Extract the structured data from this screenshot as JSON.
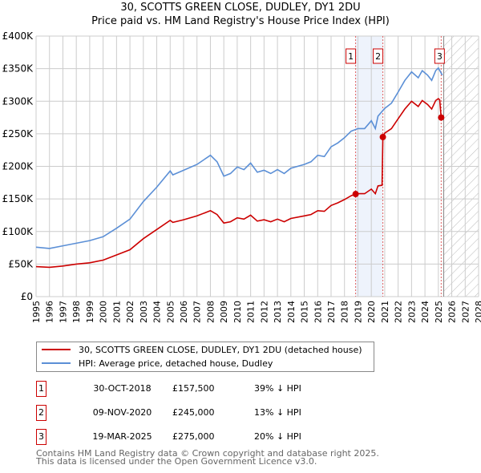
{
  "chart_data": {
    "type": "line",
    "title": "30, SCOTTS GREEN CLOSE, DUDLEY, DY1 2DU",
    "subtitle": "Price paid vs. HM Land Registry's House Price Index (HPI)",
    "xlim": [
      1995,
      2028
    ],
    "ylim": [
      0,
      400000
    ],
    "x_ticks": [
      "1995",
      "1996",
      "1997",
      "1998",
      "1999",
      "2000",
      "2001",
      "2002",
      "2003",
      "2004",
      "2005",
      "2006",
      "2007",
      "2008",
      "2009",
      "2010",
      "2011",
      "2012",
      "2013",
      "2014",
      "2015",
      "2016",
      "2017",
      "2018",
      "2019",
      "2020",
      "2021",
      "2022",
      "2023",
      "2024",
      "2025",
      "2026",
      "2027",
      "2028"
    ],
    "y_ticks": [
      {
        "v": 0,
        "label": "£0"
      },
      {
        "v": 50000,
        "label": "£50K"
      },
      {
        "v": 100000,
        "label": "£100K"
      },
      {
        "v": 150000,
        "label": "£150K"
      },
      {
        "v": 200000,
        "label": "£200K"
      },
      {
        "v": 250000,
        "label": "£250K"
      },
      {
        "v": 300000,
        "label": "£300K"
      },
      {
        "v": 350000,
        "label": "£350K"
      },
      {
        "v": 400000,
        "label": "£400K"
      }
    ],
    "grid": true,
    "shaded_span": [
      2018.83,
      2020.86
    ],
    "forecast_hatch_from": 2025.4,
    "series": [
      {
        "name": "30, SCOTTS GREEN CLOSE, DUDLEY, DY1 2DU (detached house)",
        "color": "#cc0000",
        "x": [
          1995,
          1996,
          1997,
          1998,
          1999,
          2000,
          2001,
          2002,
          2003,
          2004,
          2005,
          2005.2,
          2006,
          2007,
          2008,
          2008.5,
          2009,
          2009.5,
          2010,
          2010.5,
          2011,
          2011.5,
          2012,
          2012.5,
          2013,
          2013.5,
          2014,
          2015,
          2015.5,
          2016,
          2016.5,
          2017,
          2017.5,
          2018,
          2018.5,
          2018.83,
          2019,
          2019.5,
          2020,
          2020.3,
          2020.5,
          2020.8,
          2020.86,
          2021,
          2021.5,
          2022,
          2022.5,
          2023,
          2023.5,
          2023.8,
          2024.2,
          2024.5,
          2024.8,
          2025.0,
          2025.1,
          2025.21,
          2025.3
        ],
        "y": [
          46000,
          45000,
          47000,
          50000,
          52000,
          56000,
          64000,
          72000,
          89000,
          103000,
          117000,
          114000,
          118000,
          124000,
          132000,
          126000,
          113000,
          115000,
          121000,
          119000,
          125000,
          116000,
          118000,
          115000,
          119000,
          115000,
          120000,
          124000,
          126000,
          132000,
          131000,
          140000,
          144000,
          149000,
          155000,
          157500,
          158000,
          158000,
          165000,
          158000,
          170000,
          171000,
          245000,
          251000,
          258000,
          273000,
          288000,
          300000,
          292000,
          301000,
          295000,
          288000,
          301000,
          304000,
          302000,
          275000,
          271000
        ]
      },
      {
        "name": "HPI: Average price, detached house, Dudley",
        "color": "#5b8fd6",
        "x": [
          1995,
          1996,
          1997,
          1998,
          1999,
          2000,
          2001,
          2002,
          2003,
          2004,
          2005,
          2005.2,
          2006,
          2007,
          2008,
          2008.5,
          2009,
          2009.5,
          2010,
          2010.5,
          2011,
          2011.5,
          2012,
          2012.5,
          2013,
          2013.5,
          2014,
          2015,
          2015.5,
          2016,
          2016.5,
          2017,
          2017.5,
          2018,
          2018.5,
          2019,
          2019.5,
          2020,
          2020.3,
          2020.5,
          2021,
          2021.5,
          2022,
          2022.5,
          2023,
          2023.5,
          2023.8,
          2024.2,
          2024.5,
          2024.8,
          2025.0,
          2025.3
        ],
        "y": [
          76000,
          74000,
          78000,
          82000,
          86000,
          92000,
          105000,
          119000,
          146000,
          168000,
          193000,
          187000,
          194000,
          203000,
          217000,
          207000,
          185000,
          189000,
          199000,
          195000,
          205000,
          191000,
          194000,
          189000,
          195000,
          189000,
          197000,
          203000,
          207000,
          217000,
          215000,
          230000,
          236000,
          244000,
          254000,
          258000,
          258000,
          270000,
          258000,
          277000,
          289000,
          297000,
          314000,
          332000,
          345000,
          336000,
          347000,
          340000,
          332000,
          347000,
          351000,
          340000
        ]
      }
    ],
    "sales": [
      {
        "num": "1",
        "x": 2018.83,
        "y": 157500,
        "date": "30-OCT-2018",
        "price": "£157,500",
        "hpi": "39% ↓ HPI"
      },
      {
        "num": "2",
        "x": 2020.86,
        "y": 245000,
        "date": "09-NOV-2020",
        "price": "£245,000",
        "hpi": "13% ↓ HPI"
      },
      {
        "num": "3",
        "x": 2025.21,
        "y": 275000,
        "date": "19-MAR-2025",
        "price": "£275,000",
        "hpi": "20% ↓ HPI"
      }
    ]
  },
  "footer": {
    "line1": "Contains HM Land Registry data © Crown copyright and database right 2025.",
    "line2": "This data is licensed under the Open Government Licence v3.0."
  }
}
